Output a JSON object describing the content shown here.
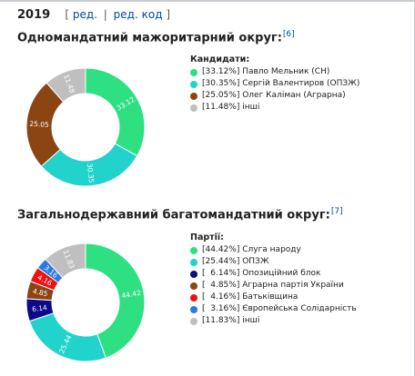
{
  "header": {
    "year": "2019",
    "edit_open": "[",
    "edit_label": "ред.",
    "edit_sep": "|",
    "edit_code_label": "ред. код",
    "edit_close": "]"
  },
  "section1": {
    "title": "Одномандатний мажоритарний округ:",
    "ref": "[6]"
  },
  "section2": {
    "title": "Загальнодержавний багатомандатний округ:",
    "ref": "[7]"
  },
  "chart_data": [
    {
      "type": "pie",
      "legend_title": "Кандидати:",
      "legend_position": "right",
      "series": [
        {
          "legend": "[33.12%] Павло Мельник (СН)",
          "value": 33.12,
          "label": "33.12",
          "color": "#2ee082"
        },
        {
          "legend": "[30.35%] Сергій Валентиров (ОПЗЖ)",
          "value": 30.35,
          "label": "30.35",
          "color": "#22d3cc"
        },
        {
          "legend": "[25.05%] Олег Каліман (Аграрна)",
          "value": 25.05,
          "label": "25.05",
          "color": "#8b4513"
        },
        {
          "legend": "[11.48%] інші",
          "value": 11.48,
          "label": "11.48",
          "color": "#bfbfbf"
        }
      ]
    },
    {
      "type": "pie",
      "legend_title": "Партії:",
      "legend_position": "right",
      "series": [
        {
          "legend": "[44.42%] Слуга народу",
          "value": 44.42,
          "label": "44.42",
          "color": "#2ee082"
        },
        {
          "legend": "[25.44%] ОПЗЖ",
          "value": 25.44,
          "label": "25.44",
          "color": "#22d3cc"
        },
        {
          "legend": "[  6.14%] Опозиційний блок",
          "value": 6.14,
          "label": "6.14",
          "color": "#0a0a8a"
        },
        {
          "legend": "[  4.85%] Аграрна партія України",
          "value": 4.85,
          "label": "4.85",
          "color": "#8b4513"
        },
        {
          "legend": "[  4.16%] Батьківщина",
          "value": 4.16,
          "label": "4.16",
          "color": "#ee1111"
        },
        {
          "legend": "[  3.16%] Європейська Солідарність",
          "value": 3.16,
          "label": "3.16",
          "color": "#2a7ae2"
        },
        {
          "legend": "[11.83%] інші",
          "value": 11.83,
          "label": "11.83",
          "color": "#bfbfbf"
        }
      ]
    }
  ]
}
